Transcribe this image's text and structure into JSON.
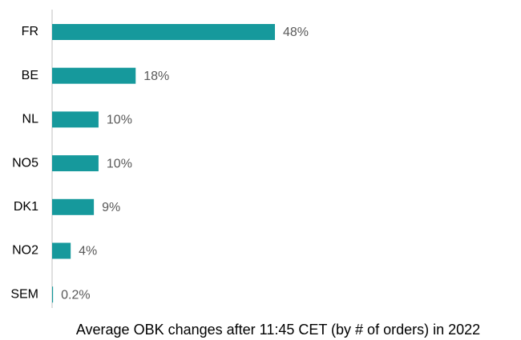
{
  "chart_data": {
    "type": "barh",
    "title": "Average OBK changes after 11:45 CET (by # of orders) in 2022",
    "categories": [
      "FR",
      "BE",
      "NL",
      "NO5",
      "DK1",
      "NO2",
      "SEM"
    ],
    "values": [
      48,
      18,
      10,
      10,
      9,
      4,
      0.2
    ],
    "value_labels": [
      "48%",
      "18%",
      "10%",
      "10%",
      "9%",
      "4%",
      "0.2%"
    ],
    "color": "#16999c"
  }
}
